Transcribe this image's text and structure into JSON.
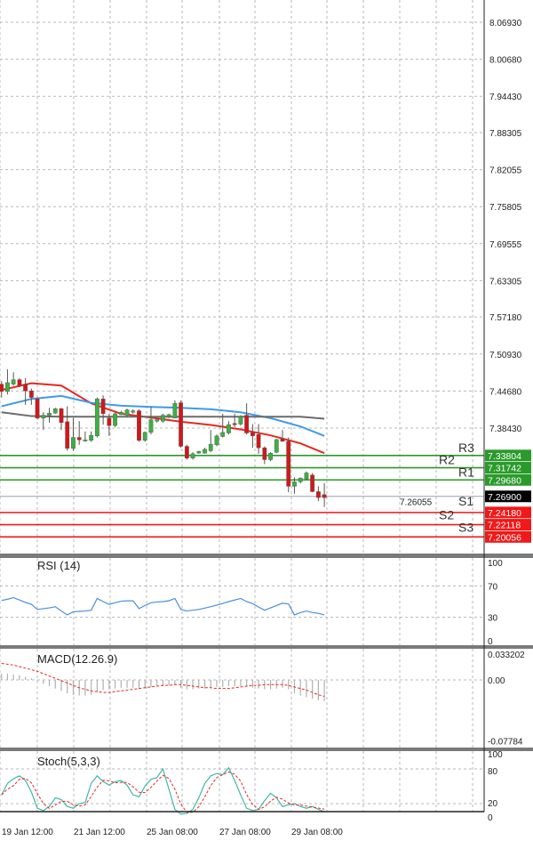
{
  "chart_data": {
    "type": "candlestick",
    "price_axis": {
      "ticks": [
        "8.06930",
        "8.00680",
        "7.94430",
        "7.88305",
        "7.82055",
        "7.75805",
        "7.69555",
        "7.63305",
        "7.57180",
        "7.50930",
        "7.44680",
        "7.38430",
        "7.26055"
      ],
      "tick_values": [
        8.0693,
        8.0068,
        7.9443,
        7.88305,
        7.82055,
        7.75805,
        7.69555,
        7.63305,
        7.5718,
        7.5093,
        7.4468,
        7.3843,
        7.26055
      ]
    },
    "time_labels": [
      "19 Jan 12:00",
      "21 Jan 12:00",
      "25 Jan 08:00",
      "27 Jan 08:00",
      "29 Jan 08:00"
    ],
    "grid": true,
    "candles_ohlc": [
      [
        7.4585,
        7.4635,
        7.436,
        7.446
      ],
      [
        7.446,
        7.4835,
        7.441,
        7.461
      ],
      [
        7.4585,
        7.4785,
        7.456,
        7.466
      ],
      [
        7.466,
        7.4685,
        7.4535,
        7.456
      ],
      [
        7.4585,
        7.4685,
        7.4235,
        7.447
      ],
      [
        7.447,
        7.451,
        7.4235,
        7.436
      ],
      [
        7.4335,
        7.436,
        7.3985,
        7.401
      ],
      [
        7.401,
        7.411,
        7.381,
        7.406
      ],
      [
        7.406,
        7.4185,
        7.3935,
        7.4095
      ],
      [
        7.4095,
        7.4185,
        7.4085,
        7.417
      ],
      [
        7.417,
        7.4185,
        7.381,
        7.3935
      ],
      [
        7.395,
        7.421,
        7.346,
        7.35
      ],
      [
        7.35,
        7.401,
        7.346,
        7.3685
      ],
      [
        7.3685,
        7.396,
        7.356,
        7.3645
      ],
      [
        7.3625,
        7.3785,
        7.361,
        7.3645
      ],
      [
        7.3635,
        7.3785,
        7.361,
        7.372
      ],
      [
        7.371,
        7.436,
        7.3685,
        7.4335
      ],
      [
        7.4335,
        7.4395,
        7.39,
        7.4085
      ],
      [
        7.401,
        7.4085,
        7.371,
        7.3885
      ],
      [
        7.3885,
        7.411,
        7.386,
        7.4085
      ],
      [
        7.407,
        7.4135,
        7.406,
        7.411
      ],
      [
        7.406,
        7.417,
        7.4035,
        7.415
      ],
      [
        7.411,
        7.416,
        7.4085,
        7.4135
      ],
      [
        7.4135,
        7.416,
        7.361,
        7.3635
      ],
      [
        7.3635,
        7.3785,
        7.361,
        7.377
      ],
      [
        7.377,
        7.421,
        7.3735,
        7.3985
      ],
      [
        7.396,
        7.401,
        7.3935,
        7.3985
      ],
      [
        7.396,
        7.4085,
        7.3935,
        7.406
      ],
      [
        7.4035,
        7.4085,
        7.401,
        7.407
      ],
      [
        7.401,
        7.431,
        7.401,
        7.426
      ],
      [
        7.427,
        7.431,
        7.351,
        7.3535
      ],
      [
        7.3535,
        7.356,
        7.331,
        7.3335
      ],
      [
        7.3335,
        7.3435,
        7.331,
        7.341
      ],
      [
        7.342,
        7.346,
        7.341,
        7.345
      ],
      [
        7.342,
        7.351,
        7.341,
        7.3485
      ],
      [
        7.346,
        7.381,
        7.3435,
        7.357
      ],
      [
        7.356,
        7.3735,
        7.3535,
        7.371
      ],
      [
        7.37,
        7.4085,
        7.3685,
        7.377
      ],
      [
        7.376,
        7.396,
        7.3735,
        7.39
      ],
      [
        7.392,
        7.4085,
        7.386,
        7.39
      ],
      [
        7.391,
        7.406,
        7.3885,
        7.4035
      ],
      [
        7.406,
        7.426,
        7.3735,
        7.376
      ],
      [
        7.377,
        7.391,
        7.351,
        7.371
      ],
      [
        7.3735,
        7.391,
        7.341,
        7.351
      ],
      [
        7.351,
        7.3535,
        7.3235,
        7.331
      ],
      [
        7.331,
        7.3435,
        7.3285,
        7.342
      ],
      [
        7.3435,
        7.366,
        7.342,
        7.365
      ],
      [
        7.366,
        7.381,
        7.361,
        7.362
      ],
      [
        7.362,
        7.3685,
        7.276,
        7.286
      ],
      [
        7.286,
        7.301,
        7.2735,
        7.2935
      ],
      [
        7.2935,
        7.301,
        7.291,
        7.3
      ],
      [
        7.2985,
        7.311,
        7.297,
        7.3085
      ],
      [
        7.305,
        7.3085,
        7.276,
        7.277
      ],
      [
        7.277,
        7.286,
        7.261,
        7.267
      ],
      [
        7.272,
        7.291,
        7.251,
        7.267
      ]
    ],
    "moving_averages": [
      {
        "color": "#e8281e",
        "every_5th_bar": [
          7.4485,
          7.46,
          7.456,
          7.426,
          7.4085,
          7.402,
          7.395,
          7.3895,
          7.382,
          7.372,
          7.3585,
          7.342
        ]
      },
      {
        "color": "#3d9be9",
        "every_5th_bar": [
          7.421,
          7.4335,
          7.4385,
          7.427,
          7.422,
          7.42,
          7.4185,
          7.416,
          7.411,
          7.401,
          7.387,
          7.371
        ]
      },
      {
        "color": "#6b6b6b",
        "every_5th_bar": [
          7.411,
          7.4045,
          7.4035,
          7.4035,
          7.4035,
          7.4035,
          7.4035,
          7.4035,
          7.4035,
          7.4035,
          7.4035,
          7.4
        ]
      }
    ],
    "current_price": {
      "label": "7.26900",
      "value": 7.269,
      "color": "#000000"
    },
    "levels": [
      {
        "name": "R3",
        "label": "7.33804",
        "value": 7.33804,
        "color": "#2a9a2a"
      },
      {
        "name": "R2",
        "label": "7.31742",
        "value": 7.31742,
        "color": "#2a9a2a"
      },
      {
        "name": "R1",
        "label": "7.29680",
        "value": 7.2968,
        "color": "#2a9a2a"
      },
      {
        "name": "S1",
        "label": "7.24180",
        "value": 7.2418,
        "color": "#f01818"
      },
      {
        "name": "S2",
        "label": "7.22118",
        "value": 7.22118,
        "color": "#f01818"
      },
      {
        "name": "S3",
        "label": "7.20056",
        "value": 7.20056,
        "color": "#f01818"
      }
    ],
    "colors": {
      "bull": "#3cb043",
      "bear": "#d0181a"
    },
    "rsi": {
      "title": "RSI (14)",
      "ticks": [
        "100",
        "70",
        "30",
        "0"
      ],
      "tick_values": [
        100,
        70,
        30,
        0
      ],
      "color": "#4a90d9",
      "values": [
        51.5,
        53,
        55,
        52,
        49,
        46.5,
        40,
        41,
        42,
        43.5,
        38,
        33,
        37,
        37.5,
        38,
        39,
        54,
        50,
        46.5,
        48.5,
        50.5,
        51,
        51,
        41,
        45,
        48.5,
        49.5,
        50,
        51,
        54,
        40,
        38,
        39,
        40,
        41.7,
        43.5,
        45.5,
        47.5,
        50,
        52,
        54,
        50,
        47.5,
        43,
        39,
        42,
        45,
        48,
        47,
        33,
        36,
        38,
        36,
        35,
        33
      ]
    },
    "macd": {
      "title": "MACD(12.26.9)",
      "ticks": [
        "0.033202",
        "0.00",
        "-0.07784"
      ],
      "tick_values": [
        0.033202,
        0,
        -0.07784
      ],
      "histogram": [
        0.008,
        0.008,
        0.007,
        0.006,
        0.004,
        0.002,
        -0.002,
        -0.005,
        -0.008,
        -0.011,
        -0.014,
        -0.017,
        -0.019,
        -0.02,
        -0.02,
        -0.019,
        -0.015,
        -0.013,
        -0.012,
        -0.011,
        -0.01,
        -0.01,
        -0.01,
        -0.012,
        -0.011,
        -0.009,
        -0.008,
        -0.008,
        -0.007,
        -0.006,
        -0.01,
        -0.012,
        -0.012,
        -0.011,
        -0.011,
        -0.01,
        -0.009,
        -0.009,
        -0.008,
        -0.008,
        -0.008,
        -0.009,
        -0.01,
        -0.011,
        -0.012,
        -0.012,
        -0.011,
        -0.01,
        -0.012,
        -0.017,
        -0.02,
        -0.022,
        -0.024,
        -0.026,
        -0.027
      ],
      "signal": [
        0.021,
        0.02,
        0.019,
        0.017,
        0.015,
        0.013,
        0.011,
        0.008,
        0.005,
        0.002,
        -0.001,
        -0.004,
        -0.007,
        -0.01,
        -0.012,
        -0.014,
        -0.015,
        -0.016,
        -0.016,
        -0.015,
        -0.014,
        -0.013,
        -0.012,
        -0.011,
        -0.01,
        -0.009,
        -0.008,
        -0.007,
        -0.007,
        -0.006,
        -0.006,
        -0.007,
        -0.008,
        -0.009,
        -0.01,
        -0.01,
        -0.011,
        -0.011,
        -0.011,
        -0.01,
        -0.009,
        -0.008,
        -0.007,
        -0.007,
        -0.006,
        -0.006,
        -0.006,
        -0.006,
        -0.007,
        -0.009,
        -0.011,
        -0.013,
        -0.016,
        -0.019,
        -0.021
      ],
      "signal_color": "#e8281e",
      "histogram_color": "#b0b0b0"
    },
    "stoch": {
      "title": "Stoch(5,3,3)",
      "ticks": [
        "100",
        "80",
        "20",
        "0"
      ],
      "tick_values": [
        100,
        80,
        20,
        0
      ],
      "main_color": "#3fb8a8",
      "signal_color": "#e8281e",
      "k": [
        35,
        55,
        63,
        68,
        60,
        40,
        12,
        8,
        15,
        30,
        27,
        15,
        12,
        20,
        22,
        55,
        68,
        58,
        52,
        58,
        60,
        52,
        35,
        32,
        50,
        62,
        65,
        80,
        45,
        10,
        2,
        3,
        10,
        30,
        55,
        68,
        72,
        70,
        82,
        60,
        35,
        12,
        8,
        10,
        25,
        38,
        30,
        15,
        18,
        20,
        15,
        12,
        15,
        10,
        6
      ]
    }
  }
}
